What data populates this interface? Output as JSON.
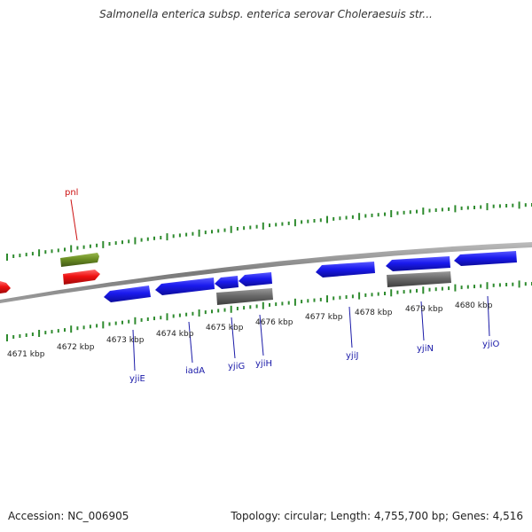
{
  "title": "Salmonella enterica subsp. enterica serovar Choleraesuis str...",
  "accession": "Accession: NC_006905",
  "topology": "Topology: circular; Length: 4,755,700 bp; Genes: 4,516",
  "colors": {
    "backbone": "#8a8a8a",
    "tick": "#2e8b2e",
    "gene_blue": "#1a1aee",
    "gene_gray": "#6a6a6a",
    "gene_olive": "#6b8e23",
    "gene_red": "#ee1111",
    "label_blue": "#1a1aa8",
    "label_red": "#cc1111"
  },
  "scale_labels": [
    "4671 kbp",
    "4672 kbp",
    "4673 kbp",
    "4674 kbp",
    "4675 kbp",
    "4676 kbp",
    "4677 kbp",
    "4678 kbp",
    "4679 kbp",
    "4680 kbp"
  ],
  "gene_labels": [
    "pnl",
    "yjiE",
    "iadA",
    "yjiG",
    "yjiH",
    "yjiJ",
    "yjiN",
    "yjiO"
  ]
}
